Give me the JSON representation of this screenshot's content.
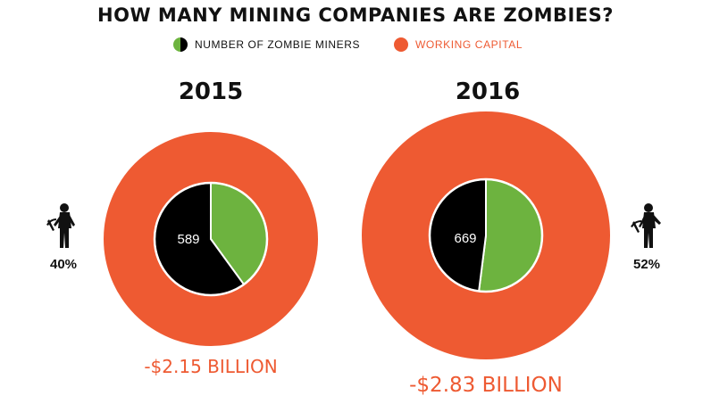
{
  "chart_data": {
    "type": "pie",
    "title": "HOW MANY MINING COMPANIES ARE ZOMBIES?",
    "legend": [
      {
        "label": "NUMBER OF ZOMBIE MINERS",
        "color": "#6db33f",
        "secondary_color": "#000000",
        "icon": "half-green-half-black-dot"
      },
      {
        "label": "WORKING CAPITAL",
        "color": "#ee5a32",
        "icon": "orange-dot"
      }
    ],
    "colors": {
      "zombie": "#6db33f",
      "non_zombie": "#000000",
      "working_capital": "#ee5a32"
    },
    "series": [
      {
        "year": "2015",
        "companies": 589,
        "zombie_share_pct": 40,
        "zombie_share_label": "40%",
        "working_capital_billion": -2.15,
        "working_capital_label": "-$2.15 BILLION"
      },
      {
        "year": "2016",
        "companies": 669,
        "zombie_share_pct": 52,
        "zombie_share_label": "52%",
        "working_capital_billion": -2.83,
        "working_capital_label": "-$2.83 BILLION"
      }
    ]
  },
  "icons": {
    "zombie_miner": "zombie-miner-icon"
  }
}
